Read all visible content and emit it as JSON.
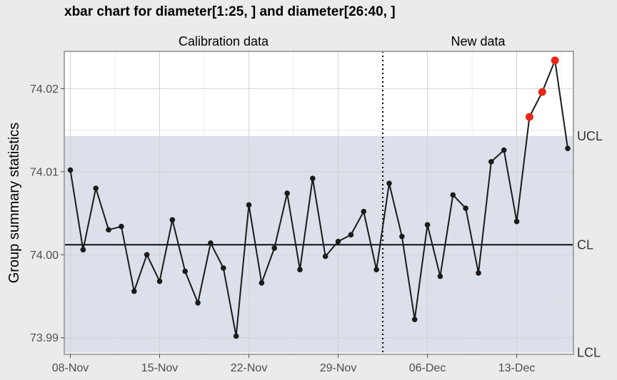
{
  "chart_data": {
    "type": "line",
    "title": "xbar chart for diameter[1:25, ] and diameter[26:40, ]",
    "ylabel": "Group summary statistics",
    "xlabel": "",
    "segments": [
      "Calibration data",
      "New data"
    ],
    "x_ticks": [
      "08-Nov",
      "15-Nov",
      "22-Nov",
      "29-Nov",
      "06-Dec",
      "13-Dec"
    ],
    "y_ticks": [
      "73.99",
      "74.00",
      "74.01",
      "74.02"
    ],
    "ylim": [
      73.988,
      74.0245
    ],
    "limits": {
      "UCL": 74.0143,
      "CL": 74.0012,
      "LCL": 73.9882
    },
    "limit_labels": {
      "UCL": "UCL",
      "CL": "CL",
      "LCL": "LCL"
    },
    "calibration_count": 25,
    "series": [
      {
        "values": [
          74.0102,
          74.0006,
          74.008,
          74.003,
          74.0034,
          73.9956,
          74.0,
          73.9968,
          74.0042,
          73.998,
          73.9942,
          74.0014,
          73.9984,
          73.9902,
          74.006,
          73.9966,
          74.0008,
          74.0074,
          73.9982,
          74.0092,
          73.9998,
          74.0016,
          74.0024,
          74.0052,
          73.9982,
          74.0086,
          74.0022,
          73.9922,
          74.0036,
          73.9974,
          74.0072,
          74.0056,
          73.9978,
          74.0112,
          74.0126,
          74.004,
          74.0166,
          74.0196,
          74.0234,
          74.0128
        ]
      }
    ],
    "violations": [
      37,
      38,
      39
    ],
    "grid": true,
    "colors": {
      "point": "#1a1a1a",
      "violation": "#e8281a",
      "band": "#dbe0ea",
      "panel": "#ffffff",
      "grid": "#dcdcdc"
    }
  }
}
